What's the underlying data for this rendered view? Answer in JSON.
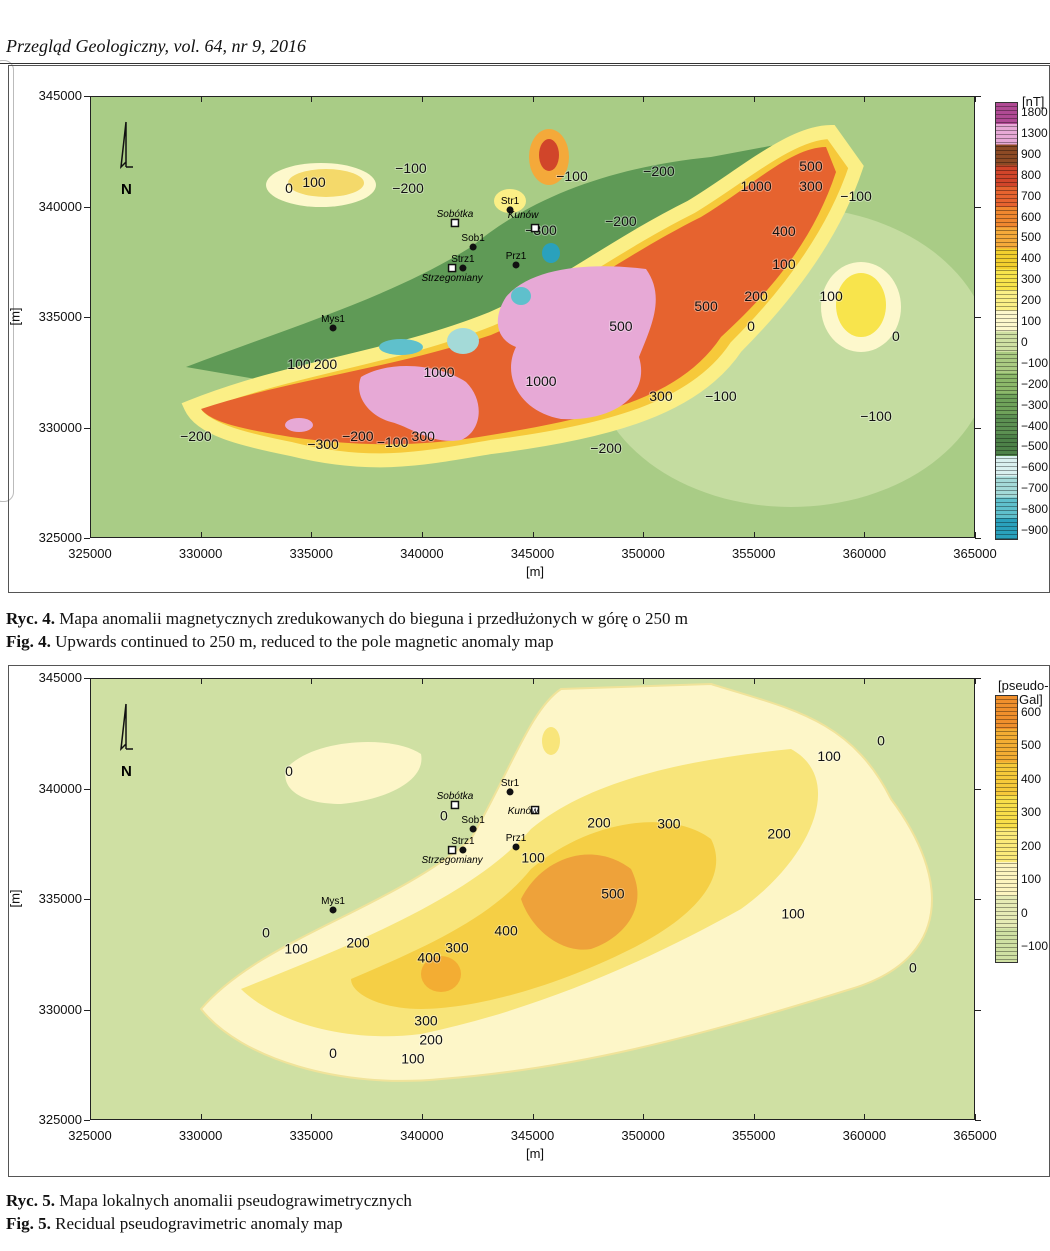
{
  "header": {
    "journal": "Przegląd Geologiczny, vol. 64, nr 9, 2016"
  },
  "chart_data": [
    {
      "type": "contour-map",
      "id": "fig4",
      "caption_pl_label": "Ryc. 4.",
      "caption_pl": "Mapa anomalii magnetycznych zredukowanych do bieguna i przedłużonych w górę o 250 m",
      "caption_en_label": "Fig. 4.",
      "caption_en": "Upwards continued to 250 m, reduced to the pole magnetic anomaly map",
      "xlabel": "[m]",
      "ylabel": "[m]",
      "xlim": [
        325000,
        365000
      ],
      "ylim": [
        325000,
        345000
      ],
      "xticks": [
        "325000",
        "330000",
        "335000",
        "340000",
        "345000",
        "350000",
        "355000",
        "360000",
        "365000"
      ],
      "yticks": [
        "345000",
        "340000",
        "335000",
        "330000",
        "325000"
      ],
      "north_arrow": "N",
      "legend": {
        "unit": "[nT]",
        "ticks": [
          "1800",
          "1300",
          "900",
          "800",
          "700",
          "600",
          "500",
          "400",
          "300",
          "200",
          "100",
          "0",
          "−100",
          "−200",
          "−300",
          "−400",
          "−500",
          "−600",
          "−700",
          "−800",
          "−900"
        ],
        "colors": [
          "#b04a94",
          "#e7a9d6",
          "#8c4a25",
          "#d1452a",
          "#e6632f",
          "#f0872f",
          "#f4a93a",
          "#f2cf2e",
          "#f8e44c",
          "#fbef86",
          "#fdf8cc",
          "#cfe0a3",
          "#aacb82",
          "#8cb86a",
          "#6fa25a",
          "#5c9052",
          "#4d8148",
          "#d9f0ef",
          "#a4dad8",
          "#5fc0cc",
          "#2aa1bc"
        ]
      },
      "wells": [
        {
          "name": "Str1",
          "x": 343940,
          "y": 339890,
          "kind": "well"
        },
        {
          "name": "Sob1",
          "x": 342270,
          "y": 338210,
          "kind": "well"
        },
        {
          "name": "Strz1",
          "x": 341810,
          "y": 337260,
          "kind": "well"
        },
        {
          "name": "Prz1",
          "x": 344210,
          "y": 337400,
          "kind": "well"
        },
        {
          "name": "Mys1",
          "x": 335940,
          "y": 334550,
          "kind": "well"
        },
        {
          "name": "Sobótka",
          "x": 341450,
          "y": 339300,
          "kind": "town"
        },
        {
          "name": "Kunów",
          "x": 345070,
          "y": 339070,
          "kind": "town"
        },
        {
          "name": "Strzegomiany",
          "x": 341320,
          "y": 337260,
          "kind": "town"
        }
      ],
      "contour_labels": [
        {
          "t": "100",
          "x": 335080,
          "y": 340930
        },
        {
          "t": "−100",
          "x": 339460,
          "y": 341560
        },
        {
          "t": "−200",
          "x": 339330,
          "y": 340660
        },
        {
          "t": "0",
          "x": 333950,
          "y": 340660
        },
        {
          "t": "−100",
          "x": 346740,
          "y": 341200
        },
        {
          "t": "−200",
          "x": 350670,
          "y": 341430
        },
        {
          "t": "1000",
          "x": 355060,
          "y": 340750
        },
        {
          "t": "500",
          "x": 357540,
          "y": 341650
        },
        {
          "t": "300",
          "x": 357540,
          "y": 340750
        },
        {
          "t": "−100",
          "x": 359580,
          "y": 340290
        },
        {
          "t": "−300",
          "x": 345340,
          "y": 338760
        },
        {
          "t": "−200",
          "x": 348950,
          "y": 339160
        },
        {
          "t": "400",
          "x": 356320,
          "y": 338710
        },
        {
          "t": "100",
          "x": 356320,
          "y": 337220
        },
        {
          "t": "200",
          "x": 355060,
          "y": 335770
        },
        {
          "t": "500",
          "x": 352800,
          "y": 335320
        },
        {
          "t": "100",
          "x": 358450,
          "y": 335770
        },
        {
          "t": "0",
          "x": 354830,
          "y": 334410
        },
        {
          "t": "0",
          "x": 361380,
          "y": 333960
        },
        {
          "t": "−100",
          "x": 353470,
          "y": 331250
        },
        {
          "t": "−100",
          "x": 360480,
          "y": 330340
        },
        {
          "t": "300",
          "x": 350760,
          "y": 331250
        },
        {
          "t": "1000",
          "x": 345340,
          "y": 331920
        },
        {
          "t": "1000",
          "x": 340730,
          "y": 332330
        },
        {
          "t": "100",
          "x": 334400,
          "y": 332690
        },
        {
          "t": "200",
          "x": 335300,
          "y": 332690
        },
        {
          "t": "−200",
          "x": 329740,
          "y": 329430
        },
        {
          "t": "−300",
          "x": 335490,
          "y": 329070
        },
        {
          "t": "−200",
          "x": 336980,
          "y": 329430
        },
        {
          "t": "−100",
          "x": 338560,
          "y": 329160
        },
        {
          "t": "300",
          "x": 339460,
          "y": 329430
        },
        {
          "t": "−200",
          "x": 348280,
          "y": 328890
        },
        {
          "t": "500",
          "x": 348950,
          "y": 334410
        }
      ]
    },
    {
      "type": "contour-map",
      "id": "fig5",
      "caption_pl_label": "Ryc. 5.",
      "caption_pl": "Mapa lokalnych anomalii pseudograwimetrycznych",
      "caption_en_label": "Fig. 5.",
      "caption_en": "Recidual pseudogravimetric anomaly map",
      "xlabel": "[m]",
      "ylabel": "[m]",
      "xlim": [
        325000,
        365000
      ],
      "ylim": [
        325000,
        345000
      ],
      "xticks": [
        "325000",
        "330000",
        "335000",
        "340000",
        "345000",
        "350000",
        "355000",
        "360000",
        "365000"
      ],
      "yticks": [
        "345000",
        "340000",
        "335000",
        "330000",
        "325000"
      ],
      "north_arrow": "N",
      "legend": {
        "unit_line1": "[pseudo-",
        "unit_line2": "-mGal]",
        "ticks": [
          "600",
          "500",
          "400",
          "300",
          "200",
          "100",
          "0",
          "−100"
        ],
        "colors": [
          "#ef8f2c",
          "#f3ad33",
          "#f6c93a",
          "#f8de4a",
          "#fbea7a",
          "#fdf4bf",
          "#e6ebb5",
          "#cfe0a3"
        ]
      },
      "wells": [
        {
          "name": "Str1",
          "x": 343940,
          "y": 339890,
          "kind": "well"
        },
        {
          "name": "Sob1",
          "x": 342270,
          "y": 338210,
          "kind": "well"
        },
        {
          "name": "Strz1",
          "x": 341810,
          "y": 337260,
          "kind": "well"
        },
        {
          "name": "Prz1",
          "x": 344210,
          "y": 337400,
          "kind": "well"
        },
        {
          "name": "Mys1",
          "x": 335940,
          "y": 334550,
          "kind": "well"
        },
        {
          "name": "Sobótka",
          "x": 341450,
          "y": 339300,
          "kind": "town"
        },
        {
          "name": "Kunów",
          "x": 345070,
          "y": 339070,
          "kind": "town"
        },
        {
          "name": "Strzegomiany",
          "x": 341320,
          "y": 337260,
          "kind": "town"
        }
      ],
      "contour_labels": [
        {
          "t": "0",
          "x": 333950,
          "y": 340620
        },
        {
          "t": "0",
          "x": 340950,
          "y": 338590
        },
        {
          "t": "100",
          "x": 358360,
          "y": 341300
        },
        {
          "t": "0",
          "x": 360710,
          "y": 341980
        },
        {
          "t": "300",
          "x": 351120,
          "y": 338230
        },
        {
          "t": "200",
          "x": 347960,
          "y": 338270
        },
        {
          "t": "200",
          "x": 356100,
          "y": 337780
        },
        {
          "t": "100",
          "x": 344980,
          "y": 336690
        },
        {
          "t": "500",
          "x": 348590,
          "y": 335070
        },
        {
          "t": "400",
          "x": 343760,
          "y": 333400
        },
        {
          "t": "100",
          "x": 356730,
          "y": 334160
        },
        {
          "t": "0",
          "x": 362150,
          "y": 331730
        },
        {
          "t": "0",
          "x": 332910,
          "y": 333310
        },
        {
          "t": "100",
          "x": 334270,
          "y": 332580
        },
        {
          "t": "200",
          "x": 337070,
          "y": 332860
        },
        {
          "t": "400",
          "x": 340280,
          "y": 332180
        },
        {
          "t": "300",
          "x": 341540,
          "y": 332630
        },
        {
          "t": "300",
          "x": 340140,
          "y": 329330
        },
        {
          "t": "200",
          "x": 340370,
          "y": 328570
        },
        {
          "t": "100",
          "x": 339550,
          "y": 327980
        },
        {
          "t": "0",
          "x": 335940,
          "y": 327840
        }
      ]
    }
  ]
}
